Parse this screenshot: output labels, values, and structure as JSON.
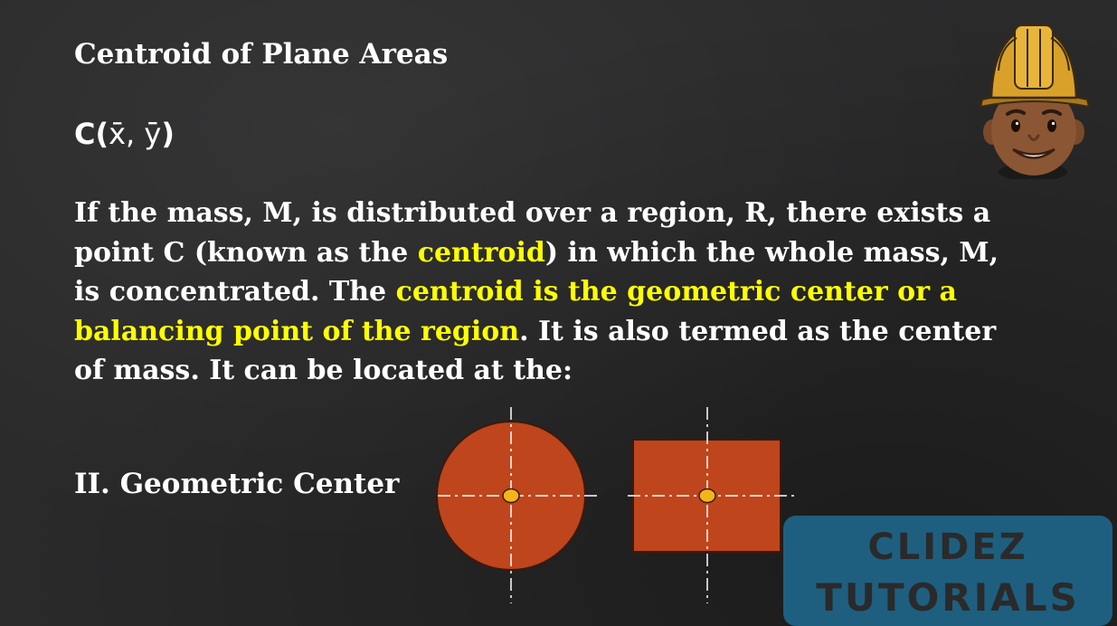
{
  "slide": {
    "title": "Centroid of Plane Areas",
    "coordinate_prefix": "C(",
    "coordinate_vars": "x̄, ȳ",
    "coordinate_suffix": ")",
    "paragraph": [
      {
        "text": "If the mass, M, is distributed over a region, R, there exists a point C (known as the ",
        "highlight": false
      },
      {
        "text": "centroid",
        "highlight": true
      },
      {
        "text": ") in which the whole mass, M, is concentrated. The ",
        "highlight": false
      },
      {
        "text": "centroid is the geometric center or a balancing point of the region",
        "highlight": true
      },
      {
        "text": ". It is also termed as the center of mass. It can be located at the:",
        "highlight": false
      }
    ],
    "subheading": "II. Geometric Center"
  },
  "figures": {
    "shape_fill": "#bf451c",
    "shape_stroke": "#3a1a0c",
    "centroid_fill": "#f4b41a",
    "axis_color": "#ffffff",
    "shapes": [
      "circle",
      "rectangle"
    ]
  },
  "branding": {
    "logo_line1": "CLIDEZ",
    "logo_line2": "TUTORIALS",
    "logo_bg": "#1e5f7f",
    "avatar_icon": "engineer-avatar-icon"
  },
  "colors": {
    "background": "#2a2a2b",
    "text": "#ffffff",
    "highlight": "#ffff00"
  }
}
